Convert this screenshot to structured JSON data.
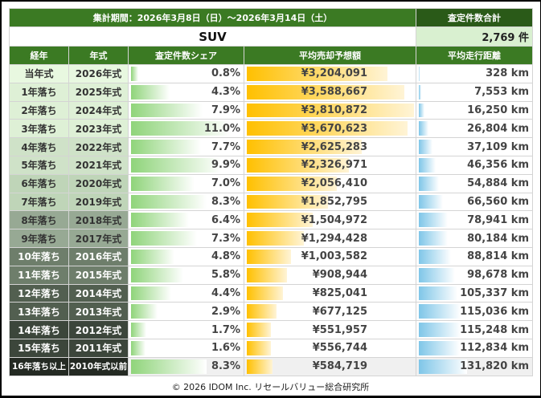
{
  "header": {
    "period": "集計期間：2026年3月8日（日）～2026年3月14日（土）",
    "total_label": "査定件数合計",
    "category": "SUV",
    "total_value": "2,769 件"
  },
  "columns": [
    "経年",
    "年式",
    "査定件数シェア",
    "平均売却予想額",
    "平均走行距離"
  ],
  "colors": {
    "header_green": "#3b7a23",
    "header_dark_green": "#2a5a18",
    "share_bar": "#8fd47a",
    "price_bar": "#ffc000",
    "mileage_bar": "#7fc6e8"
  },
  "rows": [
    {
      "age": "当年式",
      "year": "2026年式",
      "share": "0.8%",
      "share_pct": 0.8,
      "price": "¥3,204,091",
      "price_yen": 3204091,
      "mileage": "328 km",
      "mileage_km": 328,
      "bg": "#e8f8e0",
      "fg": "#333"
    },
    {
      "age": "1年落ち",
      "year": "2025年式",
      "share": "4.3%",
      "share_pct": 4.3,
      "price": "¥3,588,667",
      "price_yen": 3588667,
      "mileage": "7,553 km",
      "mileage_km": 7553,
      "bg": "#def0d6",
      "fg": "#333"
    },
    {
      "age": "2年落ち",
      "year": "2024年式",
      "share": "7.9%",
      "share_pct": 7.9,
      "price": "¥3,810,872",
      "price_yen": 3810872,
      "mileage": "16,250 km",
      "mileage_km": 16250,
      "bg": "#def0d6",
      "fg": "#333"
    },
    {
      "age": "3年落ち",
      "year": "2023年式",
      "share": "11.0%",
      "share_pct": 11.0,
      "price": "¥3,670,623",
      "price_yen": 3670623,
      "mileage": "26,804 km",
      "mileage_km": 26804,
      "bg": "#def0d6",
      "fg": "#333"
    },
    {
      "age": "4年落ち",
      "year": "2022年式",
      "share": "7.7%",
      "share_pct": 7.7,
      "price": "¥2,625,283",
      "price_yen": 2625283,
      "mileage": "37,109 km",
      "mileage_km": 37109,
      "bg": "#cfe2c8",
      "fg": "#333"
    },
    {
      "age": "5年落ち",
      "year": "2021年式",
      "share": "9.9%",
      "share_pct": 9.9,
      "price": "¥2,326,971",
      "price_yen": 2326971,
      "mileage": "46,356 km",
      "mileage_km": 46356,
      "bg": "#cfe2c8",
      "fg": "#333"
    },
    {
      "age": "6年落ち",
      "year": "2020年式",
      "share": "7.0%",
      "share_pct": 7.0,
      "price": "¥2,056,410",
      "price_yen": 2056410,
      "mileage": "54,884 km",
      "mileage_km": 54884,
      "bg": "#bfd5b8",
      "fg": "#333"
    },
    {
      "age": "7年落ち",
      "year": "2019年式",
      "share": "8.3%",
      "share_pct": 8.3,
      "price": "¥1,852,795",
      "price_yen": 1852795,
      "mileage": "66,560 km",
      "mileage_km": 66560,
      "bg": "#bfd5b8",
      "fg": "#333"
    },
    {
      "age": "8年落ち",
      "year": "2018年式",
      "share": "6.4%",
      "share_pct": 6.4,
      "price": "¥1,504,972",
      "price_yen": 1504972,
      "mileage": "78,941 km",
      "mileage_km": 78941,
      "bg": "#97a994",
      "fg": "#333"
    },
    {
      "age": "9年落ち",
      "year": "2017年式",
      "share": "7.3%",
      "share_pct": 7.3,
      "price": "¥1,294,428",
      "price_yen": 1294428,
      "mileage": "80,184 km",
      "mileage_km": 80184,
      "bg": "#97a994",
      "fg": "#333"
    },
    {
      "age": "10年落ち",
      "year": "2016年式",
      "share": "4.8%",
      "share_pct": 4.8,
      "price": "¥1,003,582",
      "price_yen": 1003582,
      "mileage": "88,814 km",
      "mileage_km": 88814,
      "bg": "#6e7e6b",
      "fg": "#fff"
    },
    {
      "age": "11年落ち",
      "year": "2015年式",
      "share": "5.8%",
      "share_pct": 5.8,
      "price": "¥908,944",
      "price_yen": 908944,
      "mileage": "98,678 km",
      "mileage_km": 98678,
      "bg": "#6e7e6b",
      "fg": "#fff"
    },
    {
      "age": "12年落ち",
      "year": "2014年式",
      "share": "4.4%",
      "share_pct": 4.4,
      "price": "¥825,041",
      "price_yen": 825041,
      "mileage": "105,337 km",
      "mileage_km": 105337,
      "bg": "#525f50",
      "fg": "#fff"
    },
    {
      "age": "13年落ち",
      "year": "2013年式",
      "share": "2.9%",
      "share_pct": 2.9,
      "price": "¥677,125",
      "price_yen": 677125,
      "mileage": "115,036 km",
      "mileage_km": 115036,
      "bg": "#525f50",
      "fg": "#fff"
    },
    {
      "age": "14年落ち",
      "year": "2012年式",
      "share": "1.7%",
      "share_pct": 1.7,
      "price": "¥551,957",
      "price_yen": 551957,
      "mileage": "115,248 km",
      "mileage_km": 115248,
      "bg": "#3c463b",
      "fg": "#fff"
    },
    {
      "age": "15年落ち",
      "year": "2011年式",
      "share": "1.6%",
      "share_pct": 1.6,
      "price": "¥556,744",
      "price_yen": 556744,
      "mileage": "112,834 km",
      "mileage_km": 112834,
      "bg": "#3c463b",
      "fg": "#fff"
    },
    {
      "age": "16年落ち以上",
      "year": "2010年式以前",
      "share": "8.3%",
      "share_pct": 8.3,
      "price": "¥584,719",
      "price_yen": 584719,
      "mileage": "131,820 km",
      "mileage_km": 131820,
      "bg": "#242a23",
      "fg": "#fff"
    }
  ],
  "scales": {
    "share_max": 11.0,
    "price_max": 3810872,
    "mileage_max": 131820
  },
  "footer": "© 2026 IDOM Inc. リセールバリュー総合研究所"
}
